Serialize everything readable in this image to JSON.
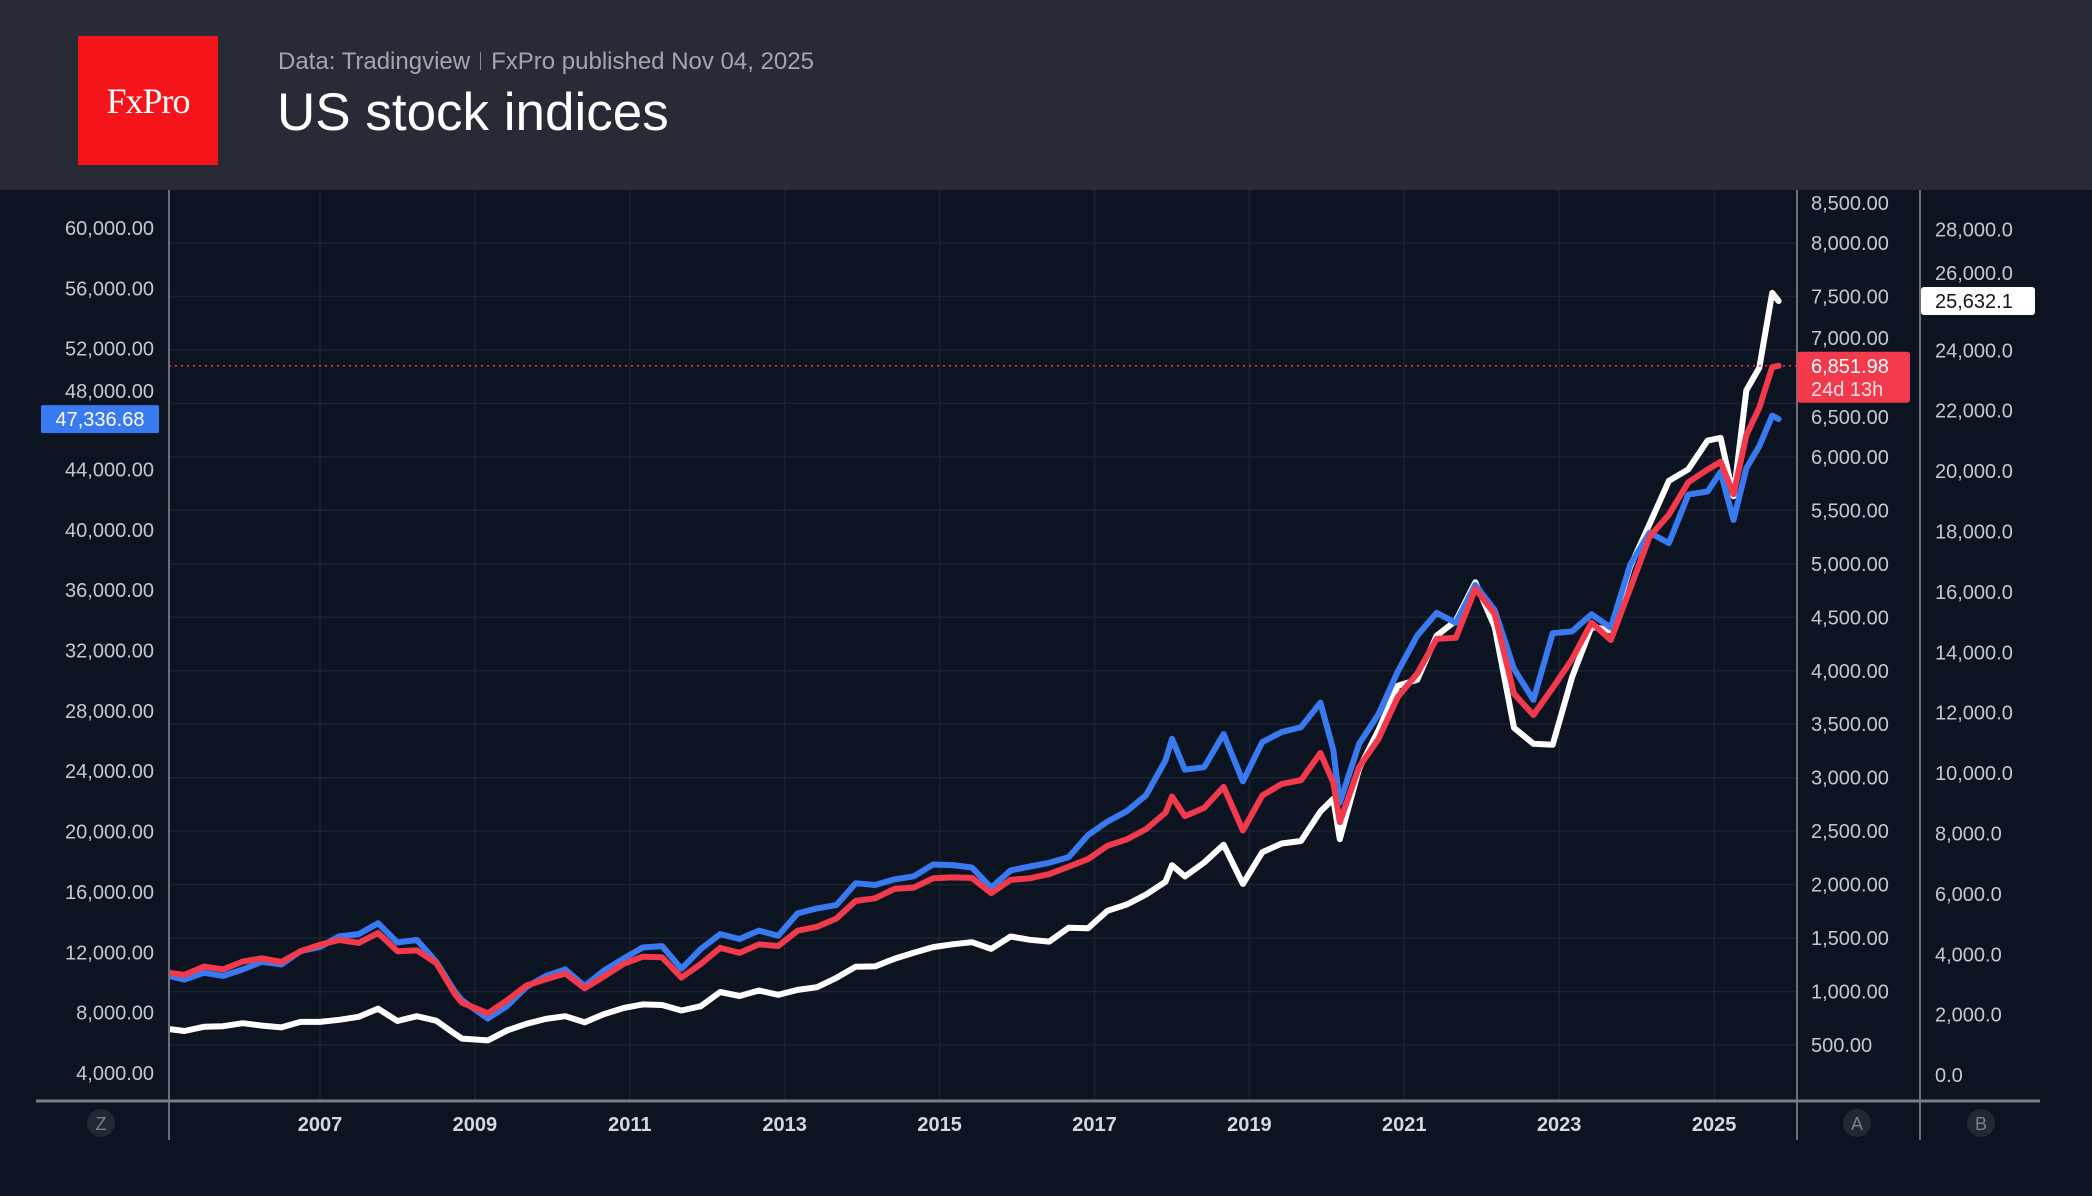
{
  "header": {
    "logo": "FxPro",
    "source": "Data: Tradingview",
    "published": "FxPro published Nov 04, 2025",
    "title": "US stock indices"
  },
  "colors": {
    "dow": "#3a7af0",
    "sp500": "#f23a4c",
    "nasdaq": "#ffffff",
    "background": "#0d1421",
    "header": "#282a36",
    "logo": "#f5141a"
  },
  "chart_data": {
    "type": "line",
    "grid": true,
    "x_ticks": [
      "2007",
      "2009",
      "2011",
      "2013",
      "2015",
      "2017",
      "2019",
      "2021",
      "2023",
      "2025"
    ],
    "xlim": [
      "2005-01",
      "2026-01"
    ],
    "axes": {
      "left": {
        "badge": "Z",
        "ticks": [
          "60,000.00",
          "56,000.00",
          "52,000.00",
          "48,000.00",
          "44,000.00",
          "40,000.00",
          "36,000.00",
          "32,000.00",
          "28,000.00",
          "24,000.00",
          "20,000.00",
          "16,000.00",
          "12,000.00",
          "8,000.00",
          "4,000.00"
        ],
        "ylim": [
          2500,
          63000
        ]
      },
      "a": {
        "badge": "A",
        "ticks": [
          "8,500.00",
          "8,000.00",
          "7,500.00",
          "7,000.00",
          "6,500.00",
          "6,000.00",
          "5,500.00",
          "5,000.00",
          "4,500.00",
          "4,000.00",
          "3,500.00",
          "3,000.00",
          "2,500.00",
          "2,000.00",
          "1,500.00",
          "1,000.00",
          "500.00"
        ],
        "ylim": [
          300,
          8500
        ]
      },
      "b": {
        "badge": "B",
        "ticks": [
          "28,000.0",
          "26,000.0",
          "24,000.0",
          "22,000.0",
          "20,000.0",
          "18,000.0",
          "16,000.0",
          "14,000.0",
          "12,000.0",
          "10,000.0",
          "8,000.0",
          "6,000.0",
          "4,000.0",
          "2,000.0",
          "0.0"
        ],
        "ylim": [
          -500,
          29500
        ]
      }
    },
    "dates": [
      "2005-01",
      "2005-04",
      "2005-07",
      "2005-10",
      "2006-01",
      "2006-04",
      "2006-07",
      "2006-10",
      "2007-01",
      "2007-04",
      "2007-07",
      "2007-10",
      "2008-01",
      "2008-04",
      "2008-07",
      "2008-10",
      "2008-11",
      "2009-03",
      "2009-06",
      "2009-09",
      "2009-12",
      "2010-03",
      "2010-06",
      "2010-09",
      "2010-12",
      "2011-03",
      "2011-06",
      "2011-09",
      "2011-12",
      "2012-03",
      "2012-06",
      "2012-09",
      "2012-12",
      "2013-03",
      "2013-06",
      "2013-09",
      "2013-12",
      "2014-03",
      "2014-06",
      "2014-09",
      "2014-12",
      "2015-03",
      "2015-06",
      "2015-09",
      "2015-12",
      "2016-03",
      "2016-06",
      "2016-09",
      "2016-12",
      "2017-03",
      "2017-06",
      "2017-09",
      "2017-12",
      "2018-01",
      "2018-03",
      "2018-06",
      "2018-09",
      "2018-12",
      "2019-03",
      "2019-06",
      "2019-09",
      "2019-12",
      "2020-02",
      "2020-03",
      "2020-06",
      "2020-09",
      "2020-12",
      "2021-03",
      "2021-06",
      "2021-09",
      "2021-12",
      "2022-03",
      "2022-06",
      "2022-09",
      "2022-12",
      "2023-03",
      "2023-06",
      "2023-09",
      "2023-12",
      "2024-03",
      "2024-06",
      "2024-09",
      "2024-12",
      "2025-02",
      "2025-04",
      "2025-06",
      "2025-08",
      "2025-10",
      "2025-11"
    ],
    "series": [
      {
        "axis": "left",
        "color": "#3a7af0",
        "last_label": "47,336.68",
        "values": [
          10490,
          10190,
          10640,
          10440,
          10860,
          11370,
          11190,
          12080,
          12350,
          13060,
          13210,
          13930,
          12650,
          12820,
          11380,
          9330,
          8830,
          7610,
          8450,
          9710,
          10430,
          10860,
          9770,
          10790,
          11580,
          12320,
          12410,
          10910,
          12220,
          13210,
          12880,
          13440,
          13100,
          14580,
          14910,
          15130,
          16580,
          16460,
          16830,
          17040,
          17820,
          17780,
          17620,
          16280,
          17430,
          17690,
          17930,
          18310,
          19760,
          20660,
          21350,
          22410,
          24720,
          26150,
          24100,
          24270,
          26460,
          23330,
          25930,
          26600,
          26920,
          28540,
          25410,
          21920,
          25810,
          27780,
          30610,
          32980,
          34500,
          33840,
          36340,
          34680,
          30780,
          28730,
          33150,
          33270,
          34410,
          33510,
          37690,
          39810,
          39120,
          42330,
          42540,
          43840,
          40650,
          44090,
          45540,
          47560,
          47336.68
        ]
      },
      {
        "axis": "a",
        "color": "#f23a4c",
        "last_label": "6,851.98",
        "countdown": "24d 13h",
        "values": [
          1181,
          1157,
          1234,
          1207,
          1280,
          1311,
          1277,
          1378,
          1438,
          1482,
          1455,
          1549,
          1378,
          1385,
          1267,
          968,
          896,
          797,
          919,
          1057,
          1115,
          1169,
          1031,
          1141,
          1258,
          1326,
          1321,
          1131,
          1258,
          1408,
          1362,
          1441,
          1426,
          1569,
          1606,
          1682,
          1848,
          1872,
          1960,
          1972,
          2059,
          2068,
          2063,
          1920,
          2044,
          2060,
          2099,
          2168,
          2239,
          2363,
          2423,
          2519,
          2674,
          2824,
          2641,
          2718,
          2914,
          2507,
          2834,
          2942,
          2977,
          3231,
          2954,
          2585,
          3100,
          3363,
          3756,
          3973,
          4298,
          4308,
          4766,
          4530,
          3785,
          3586,
          3840,
          4109,
          4450,
          4288,
          4770,
          5254,
          5460,
          5762,
          5882,
          5955,
          5650,
          6205,
          6460,
          6840,
          6851.98
        ]
      },
      {
        "axis": "b",
        "color": "#ffffff",
        "last_label": "25,632.1",
        "values": [
          1540,
          1460,
          1600,
          1620,
          1720,
          1640,
          1580,
          1760,
          1760,
          1830,
          1930,
          2200,
          1790,
          1950,
          1800,
          1350,
          1210,
          1150,
          1480,
          1700,
          1860,
          1950,
          1750,
          2020,
          2220,
          2340,
          2320,
          2140,
          2280,
          2750,
          2620,
          2800,
          2660,
          2820,
          2910,
          3220,
          3590,
          3600,
          3850,
          4050,
          4240,
          4330,
          4400,
          4180,
          4590,
          4480,
          4420,
          4880,
          4860,
          5440,
          5650,
          5980,
          6400,
          6950,
          6580,
          7040,
          7630,
          6330,
          7380,
          7670,
          7750,
          8730,
          9150,
          7810,
          10150,
          11420,
          12890,
          13090,
          14550,
          15050,
          16320,
          14840,
          11500,
          10970,
          10940,
          13180,
          14850,
          14720,
          16830,
          18250,
          19680,
          20060,
          21010,
          21100,
          19170,
          22680,
          23420,
          25900,
          25632.1
        ]
      }
    ]
  }
}
